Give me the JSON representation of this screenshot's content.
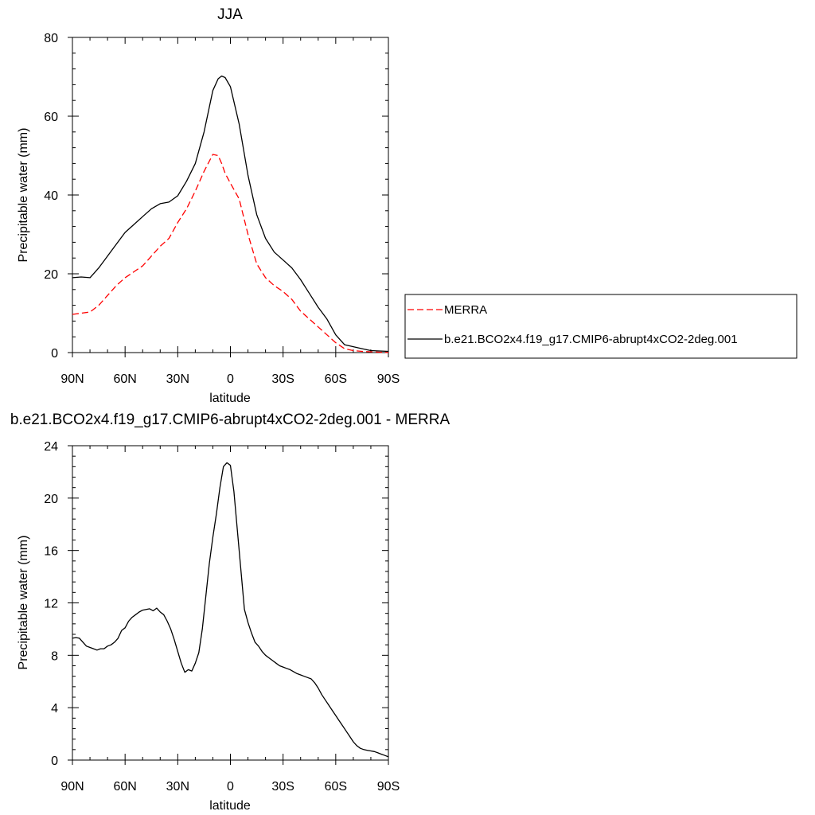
{
  "chart_data": [
    {
      "type": "line",
      "title": "JJA",
      "xlabel": "latitude",
      "ylabel": "Precipitable water (mm)",
      "xlim": [
        -90,
        90
      ],
      "ylim": [
        0,
        80
      ],
      "xticks": [
        -90,
        -60,
        -30,
        0,
        30,
        60,
        90
      ],
      "xticklabels": [
        "90N",
        "60N",
        "30N",
        "0",
        "30S",
        "60S",
        "90S"
      ],
      "yticks": [
        0,
        20,
        40,
        60,
        80
      ],
      "yticklabels": [
        "0",
        "20",
        "40",
        "60",
        "80"
      ],
      "grid": false,
      "legend_position": "right",
      "series": [
        {
          "name": "MERRA",
          "color": "#ff0000",
          "dash": "dashed",
          "x": [
            -90,
            -85,
            -80,
            -75,
            -70,
            -65,
            -60,
            -55,
            -50,
            -45,
            -40,
            -35,
            -30,
            -25,
            -20,
            -15,
            -10,
            -7,
            -5,
            -3,
            0,
            5,
            10,
            15,
            20,
            25,
            30,
            35,
            40,
            45,
            50,
            55,
            60,
            65,
            70,
            75,
            80,
            85,
            90
          ],
          "y": [
            9.7,
            10.0,
            10.3,
            12.0,
            14.5,
            17.0,
            19.0,
            20.5,
            22.0,
            24.5,
            27.0,
            29.0,
            33.0,
            36.5,
            41.0,
            46.0,
            50.3,
            50.0,
            48.0,
            45.5,
            43.0,
            39.0,
            30.0,
            22.5,
            19.0,
            17.0,
            15.5,
            13.5,
            10.5,
            8.5,
            6.5,
            4.5,
            2.5,
            1.0,
            0.5,
            0.3,
            0.2,
            0.1,
            0.05
          ]
        },
        {
          "name": "b.e21.BCO2x4.f19_g17.CMIP6-abrupt4xCO2-2deg.001",
          "color": "#000000",
          "dash": "solid",
          "x": [
            -90,
            -85,
            -80,
            -75,
            -70,
            -65,
            -60,
            -55,
            -50,
            -45,
            -40,
            -35,
            -30,
            -25,
            -20,
            -15,
            -10,
            -7,
            -5,
            -3,
            0,
            5,
            10,
            15,
            20,
            25,
            30,
            35,
            40,
            45,
            50,
            55,
            60,
            65,
            70,
            75,
            80,
            85,
            90
          ],
          "y": [
            19.0,
            19.2,
            19.0,
            21.5,
            24.5,
            27.5,
            30.5,
            32.5,
            34.5,
            36.5,
            37.8,
            38.2,
            39.8,
            43.5,
            48.0,
            56.0,
            66.5,
            69.5,
            70.2,
            69.8,
            67.5,
            58.0,
            45.0,
            35.0,
            29.0,
            25.5,
            23.5,
            21.5,
            18.5,
            15.0,
            11.5,
            8.5,
            4.5,
            2.0,
            1.5,
            1.0,
            0.5,
            0.4,
            0.3
          ]
        }
      ]
    },
    {
      "type": "line",
      "title": "b.e21.BCO2x4.f19_g17.CMIP6-abrupt4xCO2-2deg.001 - MERRA",
      "xlabel": "latitude",
      "ylabel": "Precipitable water (mm)",
      "xlim": [
        -90,
        90
      ],
      "ylim": [
        0,
        24
      ],
      "xticks": [
        -90,
        -60,
        -30,
        0,
        30,
        60,
        90
      ],
      "xticklabels": [
        "90N",
        "60N",
        "30N",
        "0",
        "30S",
        "60S",
        "90S"
      ],
      "yticks": [
        0,
        4,
        8,
        12,
        16,
        20,
        24
      ],
      "yticklabels": [
        "0",
        "4",
        "8",
        "12",
        "16",
        "20",
        "24"
      ],
      "grid": false,
      "series": [
        {
          "color": "#000000",
          "dash": "solid",
          "x": [
            -90,
            -88,
            -86,
            -84,
            -82,
            -80,
            -78,
            -76,
            -74,
            -72,
            -70,
            -68,
            -66,
            -64,
            -62,
            -60,
            -58,
            -56,
            -54,
            -52,
            -50,
            -48,
            -46,
            -44,
            -42,
            -40,
            -38,
            -36,
            -34,
            -32,
            -30,
            -28,
            -26,
            -24,
            -22,
            -20,
            -18,
            -16,
            -14,
            -12,
            -10,
            -8,
            -6,
            -4,
            -2,
            0,
            2,
            4,
            6,
            8,
            10,
            12,
            14,
            16,
            18,
            20,
            22,
            24,
            26,
            28,
            30,
            32,
            34,
            36,
            38,
            40,
            42,
            44,
            46,
            48,
            50,
            52,
            54,
            56,
            58,
            60,
            62,
            64,
            66,
            68,
            70,
            72,
            74,
            76,
            78,
            80,
            82,
            84,
            86,
            88,
            90
          ],
          "y": [
            9.3,
            9.35,
            9.3,
            9.0,
            8.7,
            8.6,
            8.5,
            8.4,
            8.5,
            8.5,
            8.7,
            8.8,
            9.0,
            9.3,
            9.9,
            10.1,
            10.6,
            10.9,
            11.1,
            11.3,
            11.45,
            11.5,
            11.55,
            11.4,
            11.6,
            11.3,
            11.1,
            10.6,
            10.0,
            9.2,
            8.3,
            7.4,
            6.7,
            6.9,
            6.8,
            7.4,
            8.2,
            10.0,
            12.5,
            15.0,
            17.0,
            18.8,
            20.8,
            22.4,
            22.7,
            22.5,
            20.5,
            17.5,
            14.5,
            11.5,
            10.5,
            9.7,
            9.0,
            8.7,
            8.3,
            8.0,
            7.8,
            7.6,
            7.4,
            7.2,
            7.1,
            7.0,
            6.9,
            6.75,
            6.6,
            6.5,
            6.4,
            6.3,
            6.2,
            5.9,
            5.5,
            5.0,
            4.6,
            4.2,
            3.8,
            3.4,
            3.0,
            2.6,
            2.2,
            1.8,
            1.4,
            1.1,
            0.9,
            0.8,
            0.75,
            0.7,
            0.65,
            0.55,
            0.45,
            0.35,
            0.25
          ]
        }
      ]
    }
  ]
}
